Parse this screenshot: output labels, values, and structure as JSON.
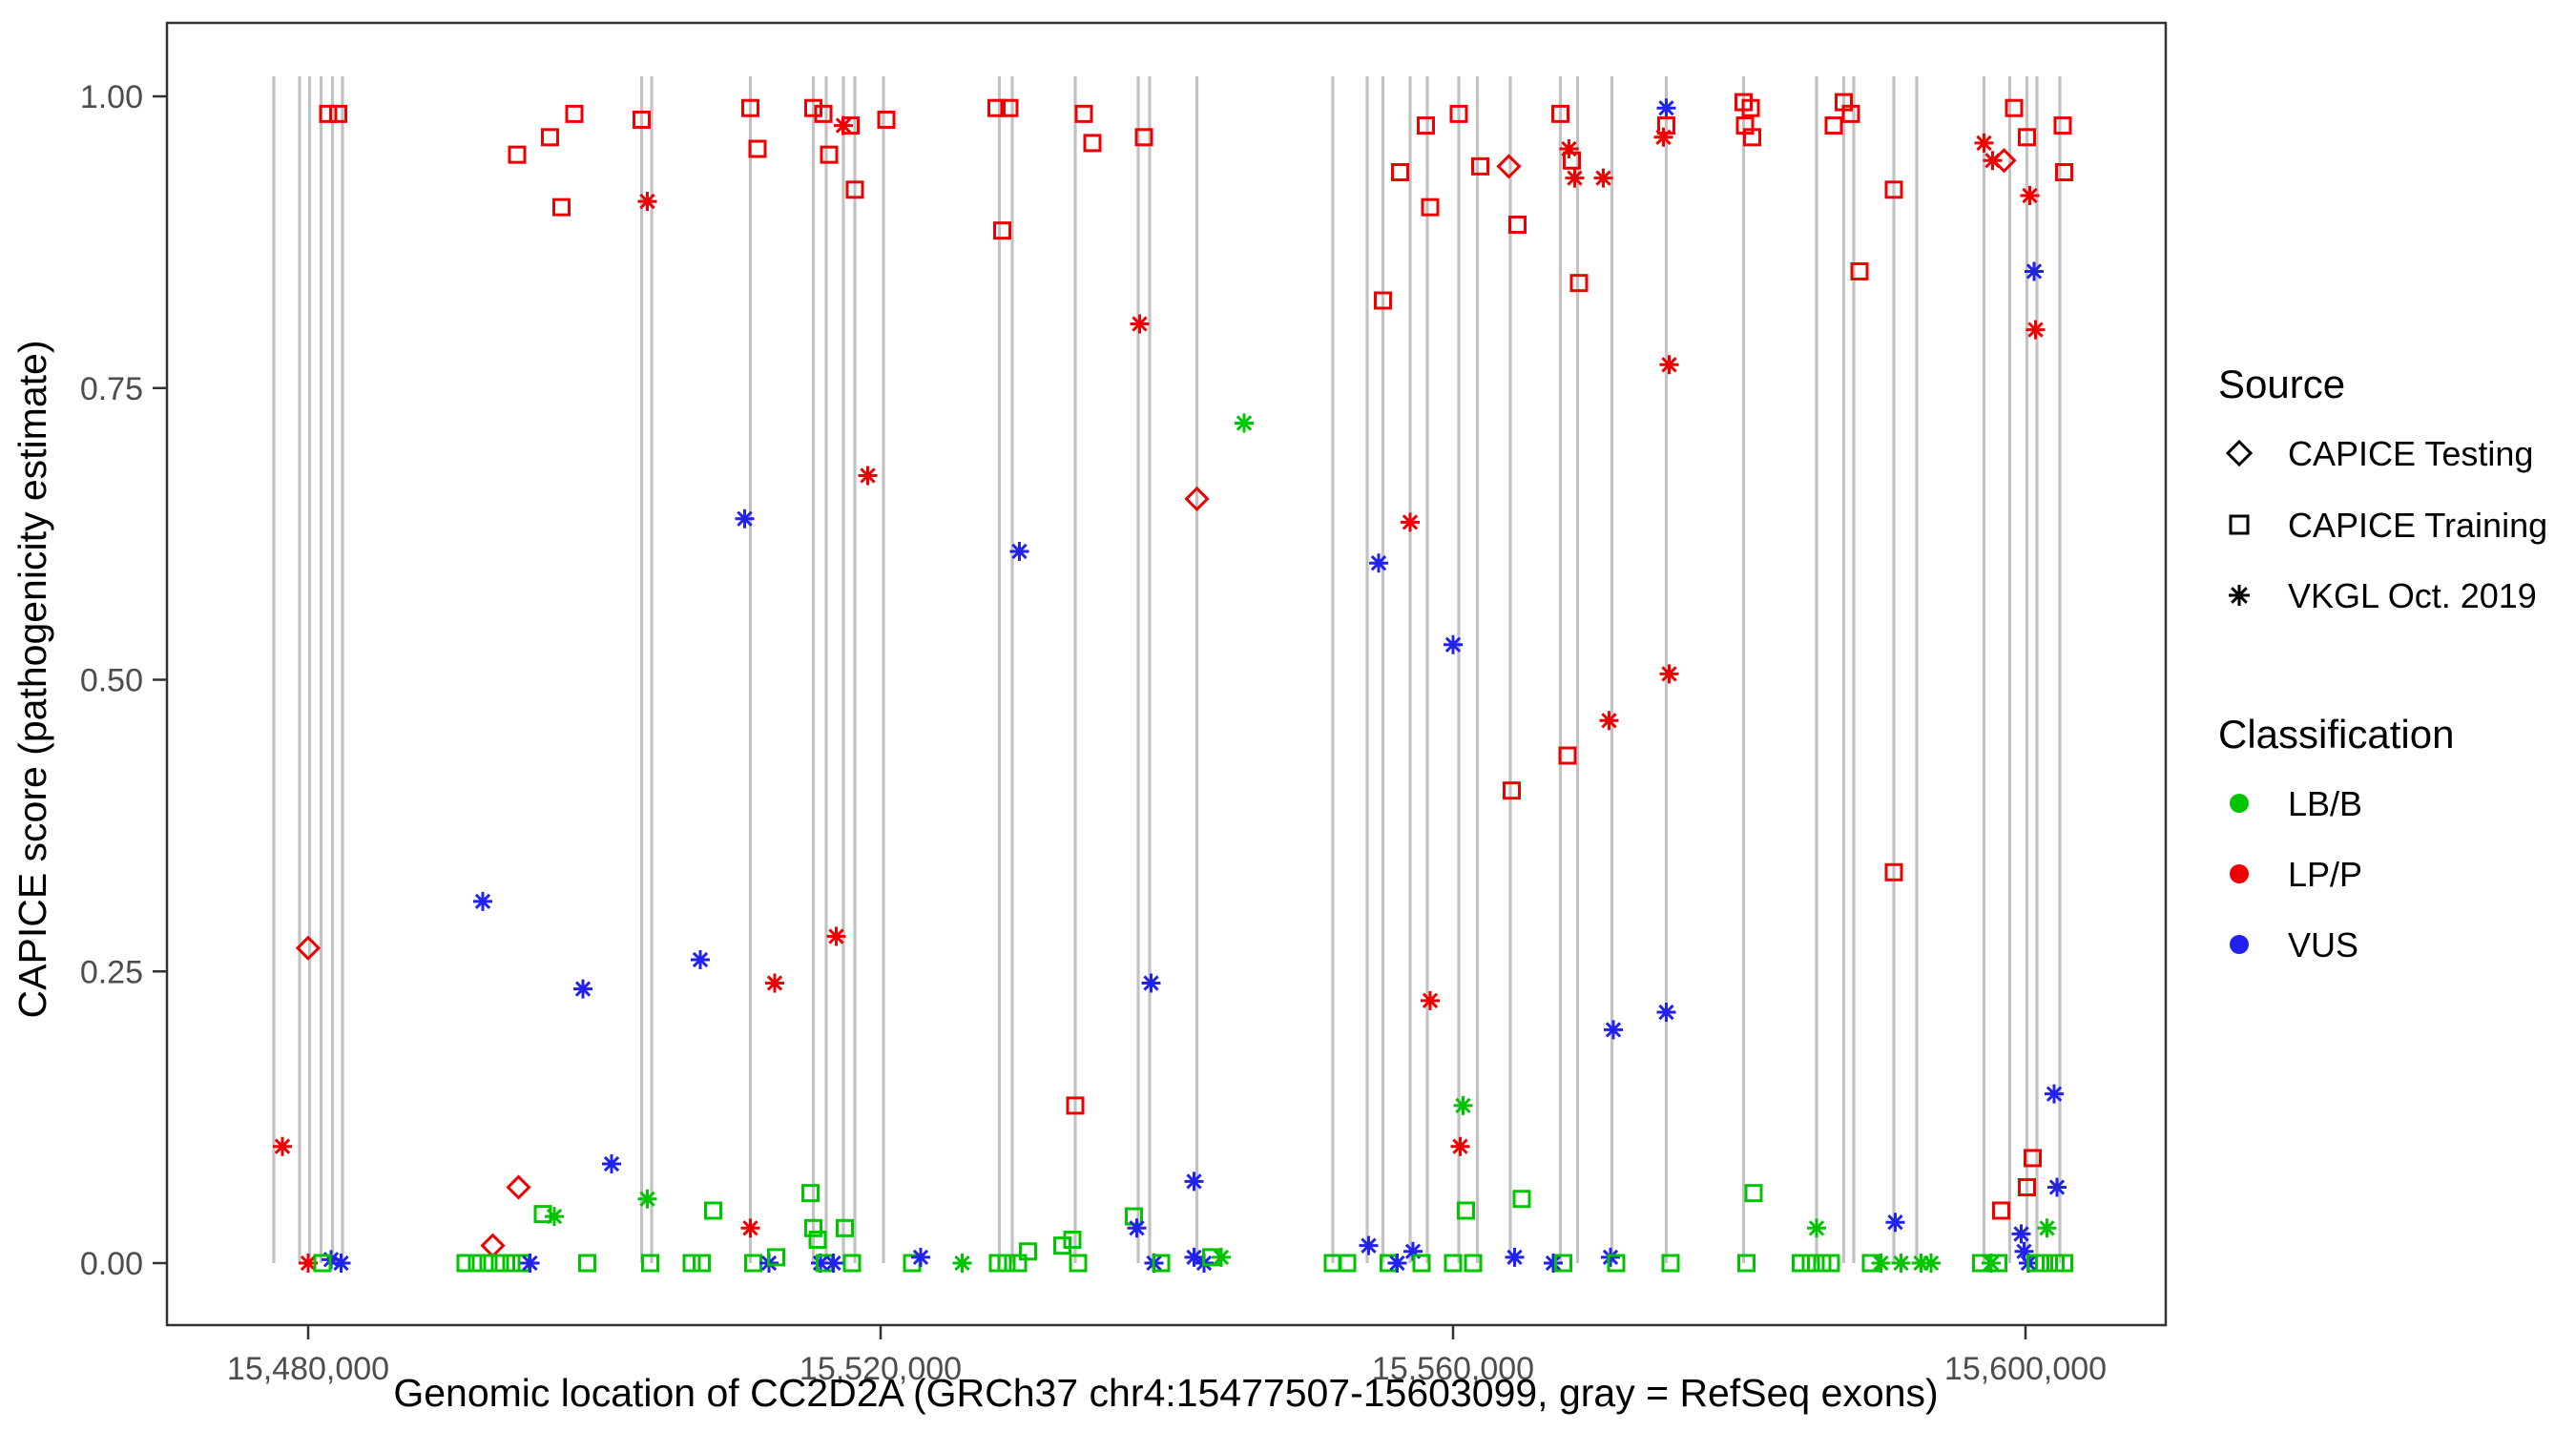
{
  "colors": {
    "lb": "#00C400",
    "lp": "#EE0000",
    "vus": "#2222EE",
    "exon_gray": "#C2C2C2",
    "panel_border": "#333333",
    "tick_text": "#4d4d4d"
  },
  "legend": {
    "source_title": "Source",
    "source_items": [
      {
        "shape": "diamond",
        "label": "CAPICE Testing"
      },
      {
        "shape": "square",
        "label": "CAPICE Training"
      },
      {
        "shape": "asterisk",
        "label": "VKGL Oct. 2019"
      }
    ],
    "class_title": "Classification",
    "class_items": [
      {
        "color_key": "lb",
        "label": "LB/B"
      },
      {
        "color_key": "lp",
        "label": "LP/P"
      },
      {
        "color_key": "vus",
        "label": "VUS"
      }
    ]
  },
  "chart_data": {
    "type": "scatter",
    "title": "",
    "xlabel": "Genomic location of CC2D2A (GRCh37 chr4:15477507-15603099, gray = RefSeq exons)",
    "ylabel": "CAPICE score (pathogenicity estimate)",
    "xlim": [
      15470000,
      15610000
    ],
    "ylim": [
      0,
      1
    ],
    "grid": false,
    "legend_position": "right",
    "x_ticks": [
      {
        "value": 15480000,
        "label": "15,480,000"
      },
      {
        "value": 15520000,
        "label": "15,520,000"
      },
      {
        "value": 15560000,
        "label": "15,560,000"
      },
      {
        "value": 15600000,
        "label": "15,600,000"
      }
    ],
    "y_ticks": [
      {
        "value": 0.0,
        "label": "0.00"
      },
      {
        "value": 0.25,
        "label": "0.25"
      },
      {
        "value": 0.5,
        "label": "0.50"
      },
      {
        "value": 0.75,
        "label": "0.75"
      },
      {
        "value": 1.0,
        "label": "1.00"
      }
    ],
    "shape_legend": {
      "d": "CAPICE Testing",
      "s": "CAPICE Training",
      "a": "VKGL Oct. 2019"
    },
    "color_legend": {
      "g": "LB/B",
      "r": "LP/P",
      "b": "VUS"
    },
    "exon_lines": [
      15477600,
      15479400,
      15480100,
      15480900,
      15481700,
      15482400,
      15503300,
      15504000,
      15510900,
      15515300,
      15516200,
      15517400,
      15518200,
      15520200,
      15528300,
      15529200,
      15533600,
      15538000,
      15538800,
      15542100,
      15551600,
      15554000,
      15555100,
      15557000,
      15558200,
      15560400,
      15561700,
      15564000,
      15567500,
      15568700,
      15571100,
      15574900,
      15580300,
      15585400,
      15587300,
      15588000,
      15590800,
      15592400,
      15597100,
      15598900,
      15600100,
      15600800,
      15602400
    ],
    "points": [
      [
        15481400,
        0.985,
        "s",
        "r"
      ],
      [
        15482100,
        0.985,
        "s",
        "r"
      ],
      [
        15494600,
        0.95,
        "s",
        "r"
      ],
      [
        15496900,
        0.965,
        "s",
        "r"
      ],
      [
        15498600,
        0.985,
        "s",
        "r"
      ],
      [
        15497700,
        0.905,
        "s",
        "r"
      ],
      [
        15503300,
        0.98,
        "s",
        "r"
      ],
      [
        15503700,
        0.91,
        "a",
        "r"
      ],
      [
        15510900,
        0.99,
        "s",
        "r"
      ],
      [
        15511400,
        0.955,
        "s",
        "r"
      ],
      [
        15515300,
        0.99,
        "s",
        "r"
      ],
      [
        15516000,
        0.985,
        "s",
        "r"
      ],
      [
        15516400,
        0.95,
        "s",
        "r"
      ],
      [
        15517400,
        0.975,
        "a",
        "r"
      ],
      [
        15517900,
        0.975,
        "s",
        "r"
      ],
      [
        15518200,
        0.92,
        "s",
        "r"
      ],
      [
        15520400,
        0.98,
        "s",
        "r"
      ],
      [
        15528100,
        0.99,
        "s",
        "r"
      ],
      [
        15529000,
        0.99,
        "s",
        "r"
      ],
      [
        15528500,
        0.885,
        "s",
        "r"
      ],
      [
        15534200,
        0.985,
        "s",
        "r"
      ],
      [
        15534800,
        0.96,
        "s",
        "r"
      ],
      [
        15538400,
        0.965,
        "s",
        "r"
      ],
      [
        15555100,
        0.825,
        "s",
        "r"
      ],
      [
        15556300,
        0.935,
        "s",
        "r"
      ],
      [
        15558100,
        0.975,
        "s",
        "r"
      ],
      [
        15558400,
        0.905,
        "s",
        "r"
      ],
      [
        15560400,
        0.985,
        "s",
        "r"
      ],
      [
        15561900,
        0.94,
        "s",
        "r"
      ],
      [
        15563900,
        0.94,
        "d",
        "r"
      ],
      [
        15564500,
        0.89,
        "s",
        "r"
      ],
      [
        15567500,
        0.985,
        "s",
        "r"
      ],
      [
        15568100,
        0.955,
        "a",
        "r"
      ],
      [
        15568300,
        0.945,
        "s",
        "r"
      ],
      [
        15568500,
        0.93,
        "a",
        "r"
      ],
      [
        15568800,
        0.84,
        "s",
        "r"
      ],
      [
        15570500,
        0.93,
        "a",
        "r"
      ],
      [
        15574900,
        0.99,
        "a",
        "b"
      ],
      [
        15574900,
        0.975,
        "s",
        "r"
      ],
      [
        15574700,
        0.965,
        "a",
        "r"
      ],
      [
        15575100,
        0.77,
        "a",
        "r"
      ],
      [
        15580300,
        0.995,
        "s",
        "r"
      ],
      [
        15580800,
        0.99,
        "s",
        "r"
      ],
      [
        15580400,
        0.975,
        "s",
        "r"
      ],
      [
        15580900,
        0.965,
        "s",
        "r"
      ],
      [
        15586600,
        0.975,
        "s",
        "r"
      ],
      [
        15587300,
        0.995,
        "s",
        "r"
      ],
      [
        15587800,
        0.985,
        "s",
        "r"
      ],
      [
        15588400,
        0.85,
        "s",
        "r"
      ],
      [
        15590800,
        0.92,
        "s",
        "r"
      ],
      [
        15597100,
        0.96,
        "a",
        "r"
      ],
      [
        15597700,
        0.945,
        "a",
        "r"
      ],
      [
        15598500,
        0.945,
        "d",
        "r"
      ],
      [
        15599200,
        0.99,
        "s",
        "r"
      ],
      [
        15600100,
        0.965,
        "s",
        "r"
      ],
      [
        15600300,
        0.915,
        "a",
        "r"
      ],
      [
        15600600,
        0.85,
        "a",
        "b"
      ],
      [
        15600700,
        0.8,
        "a",
        "r"
      ],
      [
        15602600,
        0.975,
        "s",
        "r"
      ],
      [
        15602700,
        0.935,
        "s",
        "r"
      ],
      [
        15478200,
        0.1,
        "a",
        "r"
      ],
      [
        15480000,
        0.27,
        "d",
        "r"
      ],
      [
        15492200,
        0.31,
        "a",
        "b"
      ],
      [
        15492900,
        0.015,
        "d",
        "r"
      ],
      [
        15494700,
        0.065,
        "d",
        "r"
      ],
      [
        15499200,
        0.235,
        "a",
        "b"
      ],
      [
        15501200,
        0.085,
        "a",
        "b"
      ],
      [
        15507400,
        0.26,
        "a",
        "b"
      ],
      [
        15510500,
        0.638,
        "a",
        "b"
      ],
      [
        15512600,
        0.24,
        "a",
        "r"
      ],
      [
        15516900,
        0.28,
        "a",
        "r"
      ],
      [
        15519100,
        0.675,
        "a",
        "r"
      ],
      [
        15529700,
        0.61,
        "a",
        "b"
      ],
      [
        15533600,
        0.135,
        "s",
        "r"
      ],
      [
        15538100,
        0.805,
        "a",
        "r"
      ],
      [
        15538900,
        0.24,
        "a",
        "b"
      ],
      [
        15542100,
        0.655,
        "d",
        "r"
      ],
      [
        15541900,
        0.07,
        "a",
        "b"
      ],
      [
        15545400,
        0.72,
        "a",
        "g"
      ],
      [
        15554800,
        0.6,
        "a",
        "b"
      ],
      [
        15557000,
        0.635,
        "a",
        "r"
      ],
      [
        15558400,
        0.225,
        "a",
        "r"
      ],
      [
        15560000,
        0.53,
        "a",
        "b"
      ],
      [
        15560500,
        0.1,
        "a",
        "r"
      ],
      [
        15560700,
        0.135,
        "a",
        "g"
      ],
      [
        15564100,
        0.405,
        "s",
        "r"
      ],
      [
        15568000,
        0.435,
        "s",
        "r"
      ],
      [
        15570900,
        0.465,
        "a",
        "r"
      ],
      [
        15571200,
        0.2,
        "a",
        "b"
      ],
      [
        15574900,
        0.215,
        "a",
        "b"
      ],
      [
        15575100,
        0.505,
        "a",
        "r"
      ],
      [
        15581000,
        0.06,
        "s",
        "g"
      ],
      [
        15585400,
        0.03,
        "a",
        "g"
      ],
      [
        15590800,
        0.335,
        "s",
        "r"
      ],
      [
        15590900,
        0.035,
        "a",
        "b"
      ],
      [
        15598300,
        0.045,
        "s",
        "r"
      ],
      [
        15600100,
        0.065,
        "s",
        "r"
      ],
      [
        15600500,
        0.09,
        "s",
        "r"
      ],
      [
        15602000,
        0.145,
        "a",
        "b"
      ],
      [
        15602200,
        0.065,
        "a",
        "b"
      ],
      [
        15601500,
        0.03,
        "a",
        "g"
      ],
      [
        15480000,
        0,
        "a",
        "r"
      ],
      [
        15481600,
        0.003,
        "a",
        "b"
      ],
      [
        15482300,
        0,
        "a",
        "b"
      ],
      [
        15481000,
        0,
        "s",
        "g"
      ],
      [
        15491000,
        0,
        "s",
        "g"
      ],
      [
        15491800,
        0,
        "s",
        "g"
      ],
      [
        15492600,
        0,
        "s",
        "g"
      ],
      [
        15493400,
        0,
        "s",
        "g"
      ],
      [
        15494200,
        0,
        "s",
        "g"
      ],
      [
        15494900,
        0,
        "s",
        "g"
      ],
      [
        15495500,
        0,
        "a",
        "b"
      ],
      [
        15496400,
        0.042,
        "s",
        "g"
      ],
      [
        15497200,
        0.04,
        "a",
        "g"
      ],
      [
        15499500,
        0,
        "s",
        "g"
      ],
      [
        15503700,
        0.055,
        "a",
        "g"
      ],
      [
        15503900,
        0,
        "s",
        "g"
      ],
      [
        15506800,
        0,
        "s",
        "g"
      ],
      [
        15507500,
        0,
        "s",
        "g"
      ],
      [
        15508300,
        0.045,
        "s",
        "g"
      ],
      [
        15510900,
        0.03,
        "a",
        "r"
      ],
      [
        15511100,
        0,
        "s",
        "g"
      ],
      [
        15512200,
        0,
        "a",
        "b"
      ],
      [
        15512700,
        0.005,
        "s",
        "g"
      ],
      [
        15515100,
        0.06,
        "s",
        "g"
      ],
      [
        15515300,
        0.03,
        "s",
        "g"
      ],
      [
        15515600,
        0.02,
        "s",
        "g"
      ],
      [
        15515800,
        0,
        "a",
        "b"
      ],
      [
        15516100,
        0,
        "s",
        "g"
      ],
      [
        15516700,
        0,
        "a",
        "b"
      ],
      [
        15517500,
        0.03,
        "s",
        "g"
      ],
      [
        15518000,
        0,
        "s",
        "g"
      ],
      [
        15522200,
        0,
        "s",
        "g"
      ],
      [
        15522800,
        0.005,
        "a",
        "b"
      ],
      [
        15525700,
        0,
        "a",
        "g"
      ],
      [
        15528200,
        0,
        "s",
        "g"
      ],
      [
        15528800,
        0,
        "s",
        "g"
      ],
      [
        15529600,
        0,
        "s",
        "g"
      ],
      [
        15530300,
        0.01,
        "s",
        "g"
      ],
      [
        15532700,
        0.015,
        "s",
        "g"
      ],
      [
        15533400,
        0.02,
        "s",
        "g"
      ],
      [
        15533800,
        0,
        "s",
        "g"
      ],
      [
        15537700,
        0.04,
        "s",
        "g"
      ],
      [
        15537900,
        0.03,
        "a",
        "b"
      ],
      [
        15539100,
        0,
        "a",
        "b"
      ],
      [
        15539600,
        0,
        "s",
        "g"
      ],
      [
        15541900,
        0.005,
        "a",
        "b"
      ],
      [
        15542600,
        0,
        "a",
        "b"
      ],
      [
        15543100,
        0.005,
        "s",
        "g"
      ],
      [
        15543800,
        0.005,
        "a",
        "g"
      ],
      [
        15551600,
        0,
        "s",
        "g"
      ],
      [
        15552600,
        0,
        "s",
        "g"
      ],
      [
        15554100,
        0.015,
        "a",
        "b"
      ],
      [
        15555500,
        0,
        "s",
        "g"
      ],
      [
        15556100,
        0,
        "a",
        "b"
      ],
      [
        15557200,
        0.01,
        "a",
        "b"
      ],
      [
        15557800,
        0,
        "s",
        "g"
      ],
      [
        15560000,
        0,
        "s",
        "g"
      ],
      [
        15560900,
        0.045,
        "s",
        "g"
      ],
      [
        15561400,
        0,
        "s",
        "g"
      ],
      [
        15564300,
        0.005,
        "a",
        "b"
      ],
      [
        15564800,
        0.055,
        "s",
        "g"
      ],
      [
        15567000,
        0,
        "a",
        "b"
      ],
      [
        15567700,
        0,
        "s",
        "g"
      ],
      [
        15571000,
        0.005,
        "a",
        "b"
      ],
      [
        15571400,
        0,
        "s",
        "g"
      ],
      [
        15575200,
        0,
        "s",
        "g"
      ],
      [
        15580500,
        0,
        "s",
        "g"
      ],
      [
        15584300,
        0,
        "s",
        "g"
      ],
      [
        15585000,
        0,
        "s",
        "g"
      ],
      [
        15585800,
        0,
        "s",
        "g"
      ],
      [
        15586400,
        0,
        "s",
        "g"
      ],
      [
        15589200,
        0,
        "s",
        "g"
      ],
      [
        15589900,
        0,
        "a",
        "g"
      ],
      [
        15591300,
        0,
        "a",
        "g"
      ],
      [
        15592700,
        0,
        "a",
        "g"
      ],
      [
        15593400,
        0,
        "a",
        "g"
      ],
      [
        15596900,
        0,
        "s",
        "g"
      ],
      [
        15597600,
        0,
        "a",
        "g"
      ],
      [
        15598100,
        0,
        "s",
        "g"
      ],
      [
        15599700,
        0.025,
        "a",
        "b"
      ],
      [
        15599900,
        0.01,
        "a",
        "b"
      ],
      [
        15600200,
        0,
        "a",
        "b"
      ],
      [
        15600700,
        0,
        "s",
        "g"
      ],
      [
        15601300,
        0,
        "s",
        "g"
      ],
      [
        15602100,
        0,
        "s",
        "g"
      ],
      [
        15602700,
        0,
        "s",
        "g"
      ]
    ]
  }
}
